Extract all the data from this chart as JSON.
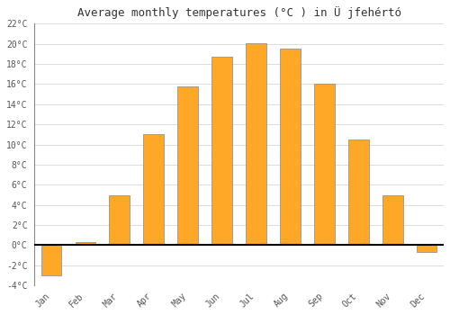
{
  "title": "Average monthly temperatures (°C ) in Ü jfehértó",
  "months": [
    "Jan",
    "Feb",
    "Mar",
    "Apr",
    "May",
    "Jun",
    "Jul",
    "Aug",
    "Sep",
    "Oct",
    "Nov",
    "Dec"
  ],
  "values": [
    -3.0,
    0.3,
    5.0,
    11.0,
    15.8,
    18.7,
    20.1,
    19.5,
    16.0,
    10.5,
    5.0,
    -0.7
  ],
  "bar_color": "#FFA726",
  "bar_edge_color": "#888888",
  "background_color": "#ffffff",
  "grid_color": "#dddddd",
  "ylim": [
    -4,
    22
  ],
  "yticks": [
    -4,
    -2,
    0,
    2,
    4,
    6,
    8,
    10,
    12,
    14,
    16,
    18,
    20,
    22
  ],
  "title_fontsize": 9,
  "tick_fontsize": 7,
  "figsize": [
    5.0,
    3.5
  ],
  "dpi": 100
}
